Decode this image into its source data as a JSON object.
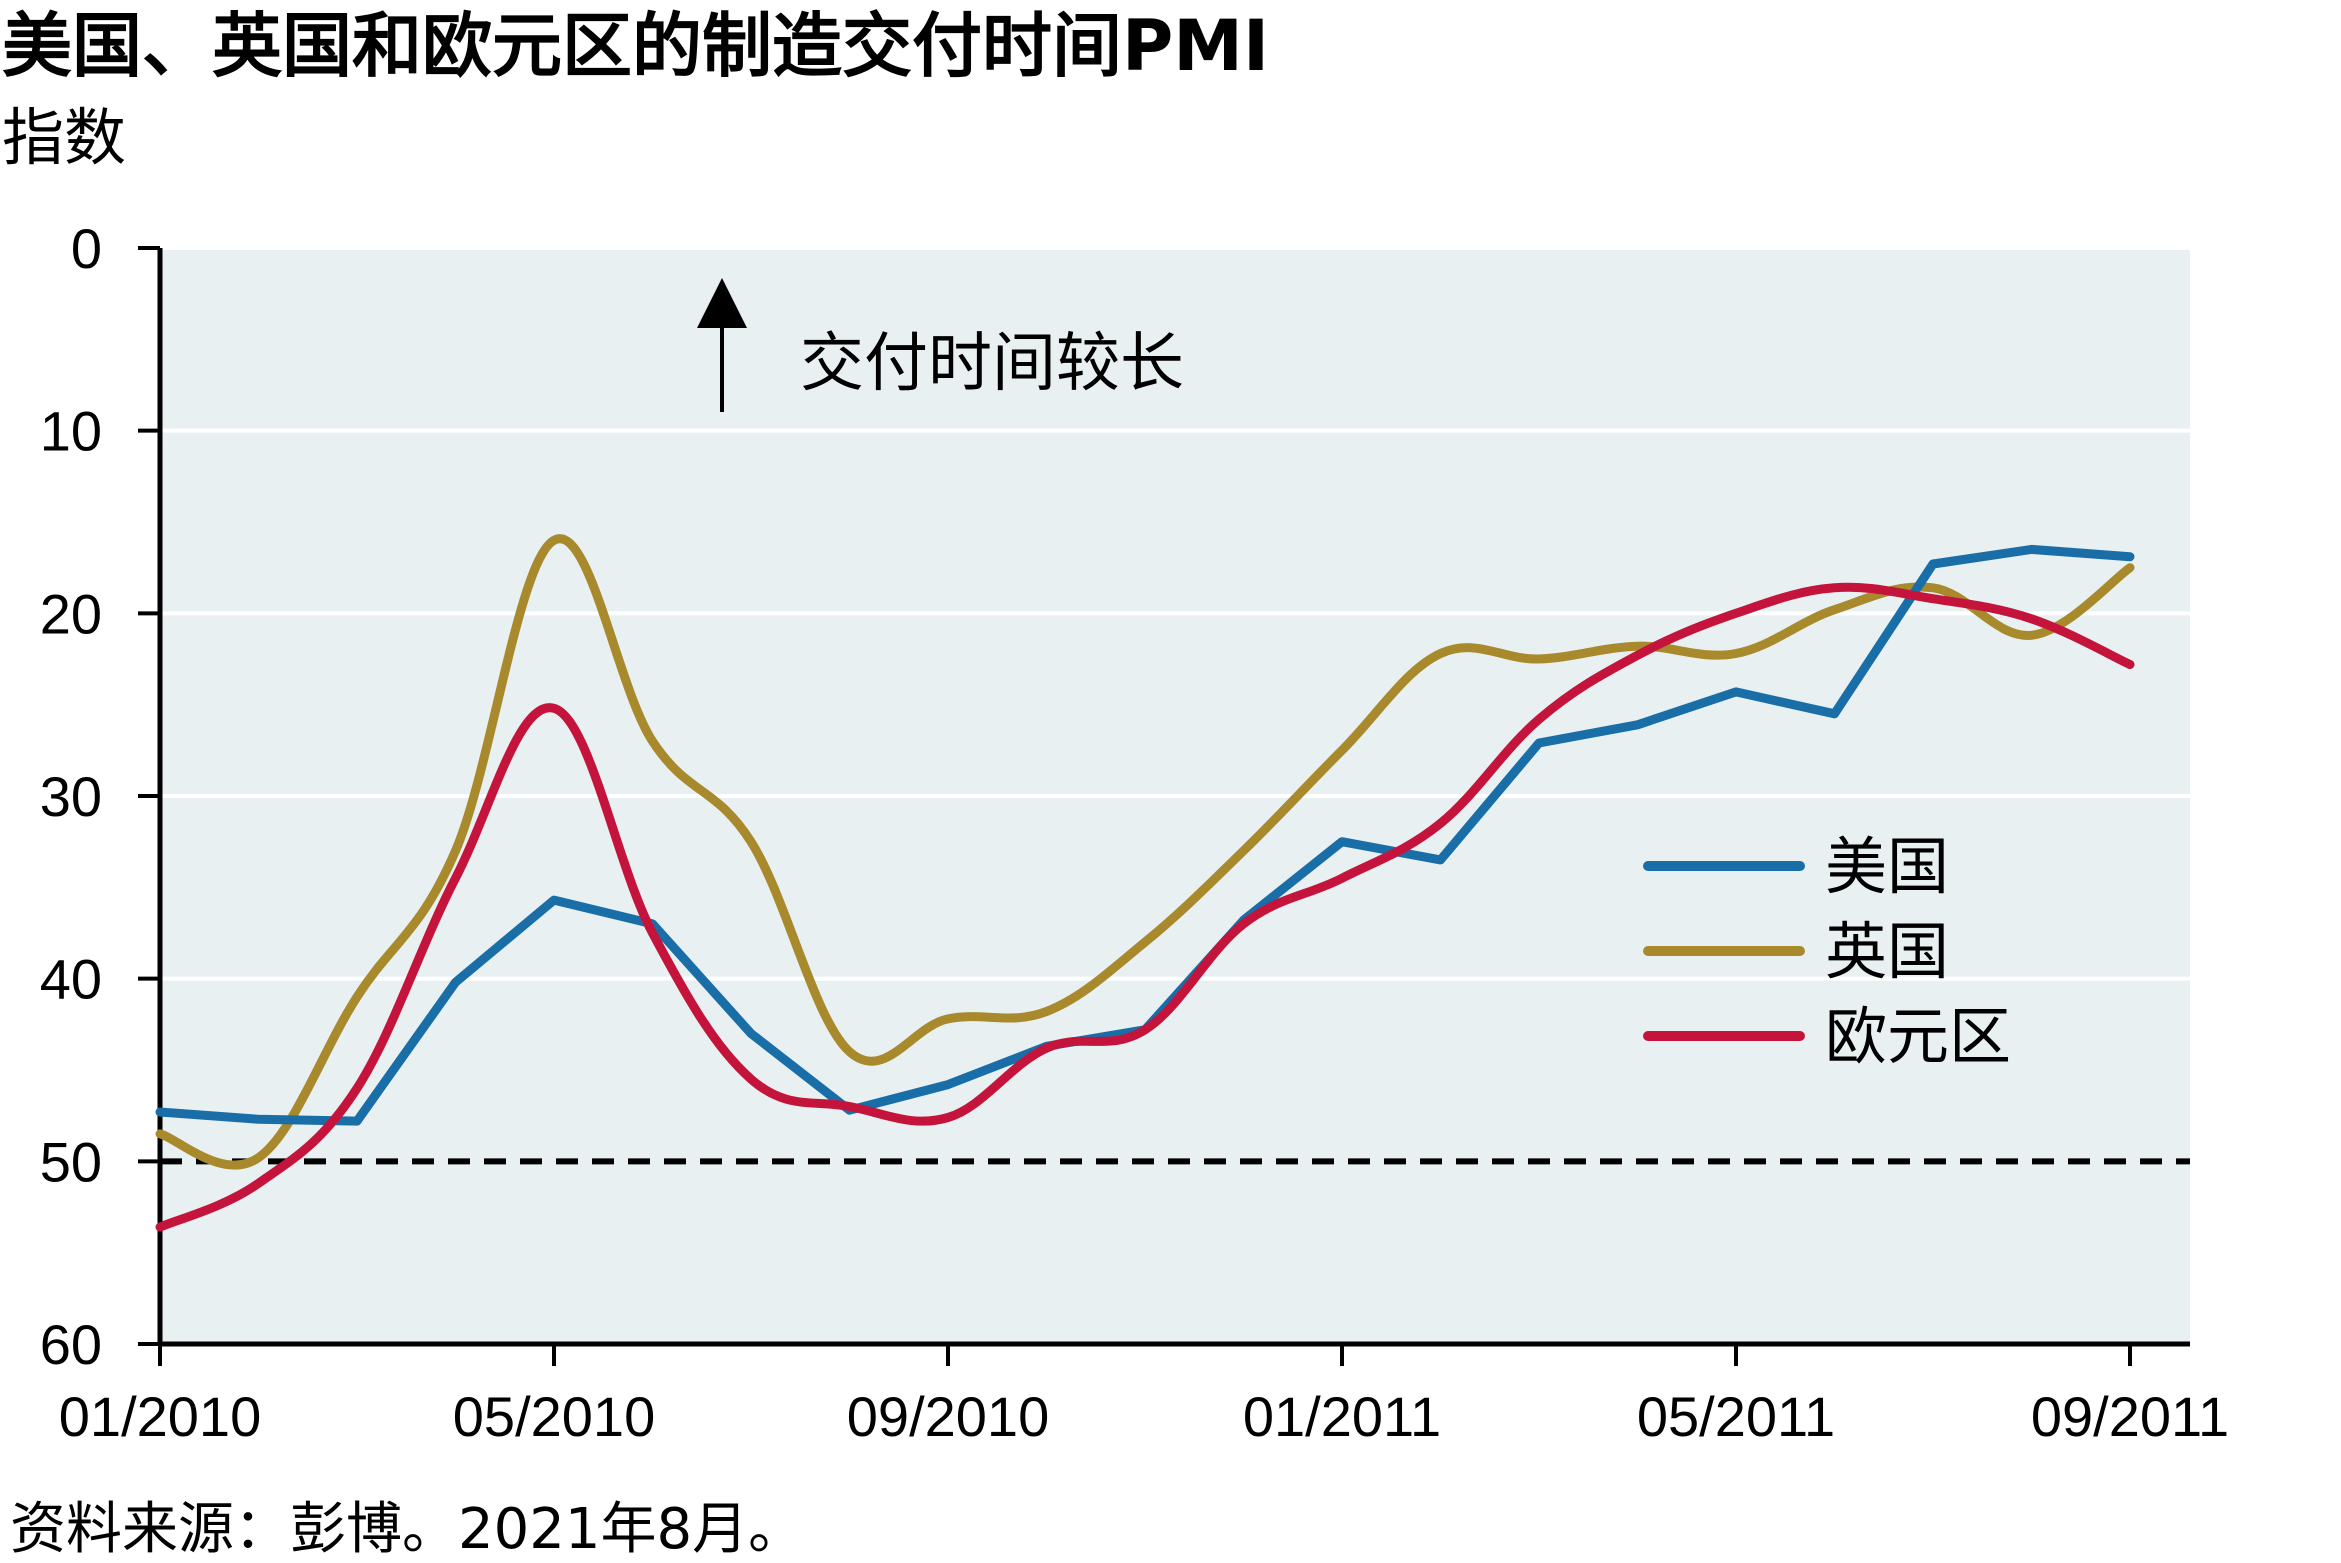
{
  "chart_data": {
    "type": "line",
    "title": "美国、英国和欧元区的制造交付时间PMI",
    "subtitle": "指数",
    "source": "资料来源：彭博。2021年8月。",
    "annotation": "交付时间较长",
    "ylim": [
      60,
      0
    ],
    "y_inverted": true,
    "yticks": [
      0,
      10,
      20,
      30,
      40,
      50,
      60
    ],
    "x": [
      "01/2010",
      "02/2010",
      "03/2010",
      "04/2010",
      "05/2010",
      "06/2010",
      "07/2010",
      "08/2010",
      "09/2010",
      "10/2010",
      "11/2010",
      "12/2010",
      "01/2011",
      "02/2011",
      "03/2011",
      "04/2011",
      "05/2011",
      "06/2011",
      "07/2011",
      "08/2011",
      "09/2011"
    ],
    "xticks": [
      "01/2010",
      "05/2010",
      "09/2010",
      "01/2011",
      "05/2011",
      "09/2011"
    ],
    "reference_line": 50,
    "grid": true,
    "legend_position": "right",
    "series": [
      {
        "name": "美国",
        "color": "#1a6ea8",
        "values": [
          47.3,
          47.7,
          47.8,
          40.2,
          35.7,
          37.0,
          43.0,
          47.2,
          45.8,
          43.7,
          42.8,
          36.8,
          32.5,
          33.5,
          27.1,
          26.1,
          24.3,
          25.5,
          17.3,
          16.5,
          16.9
        ]
      },
      {
        "name": "英国",
        "color": "#a88a2d",
        "values": [
          48.5,
          49.8,
          41.0,
          33.0,
          16.0,
          27.0,
          32.5,
          44.0,
          42.2,
          41.8,
          38.0,
          33.0,
          27.5,
          22.2,
          22.5,
          21.8,
          22.2,
          19.8,
          18.6,
          21.2,
          17.5
        ]
      },
      {
        "name": "欧元区",
        "color": "#c4143c",
        "values": [
          53.6,
          51.2,
          46.0,
          34.5,
          25.2,
          37.5,
          45.5,
          47.0,
          47.6,
          43.8,
          42.8,
          37.0,
          34.5,
          31.5,
          25.8,
          22.3,
          20.0,
          18.6,
          19.2,
          20.3,
          22.8
        ]
      }
    ]
  }
}
